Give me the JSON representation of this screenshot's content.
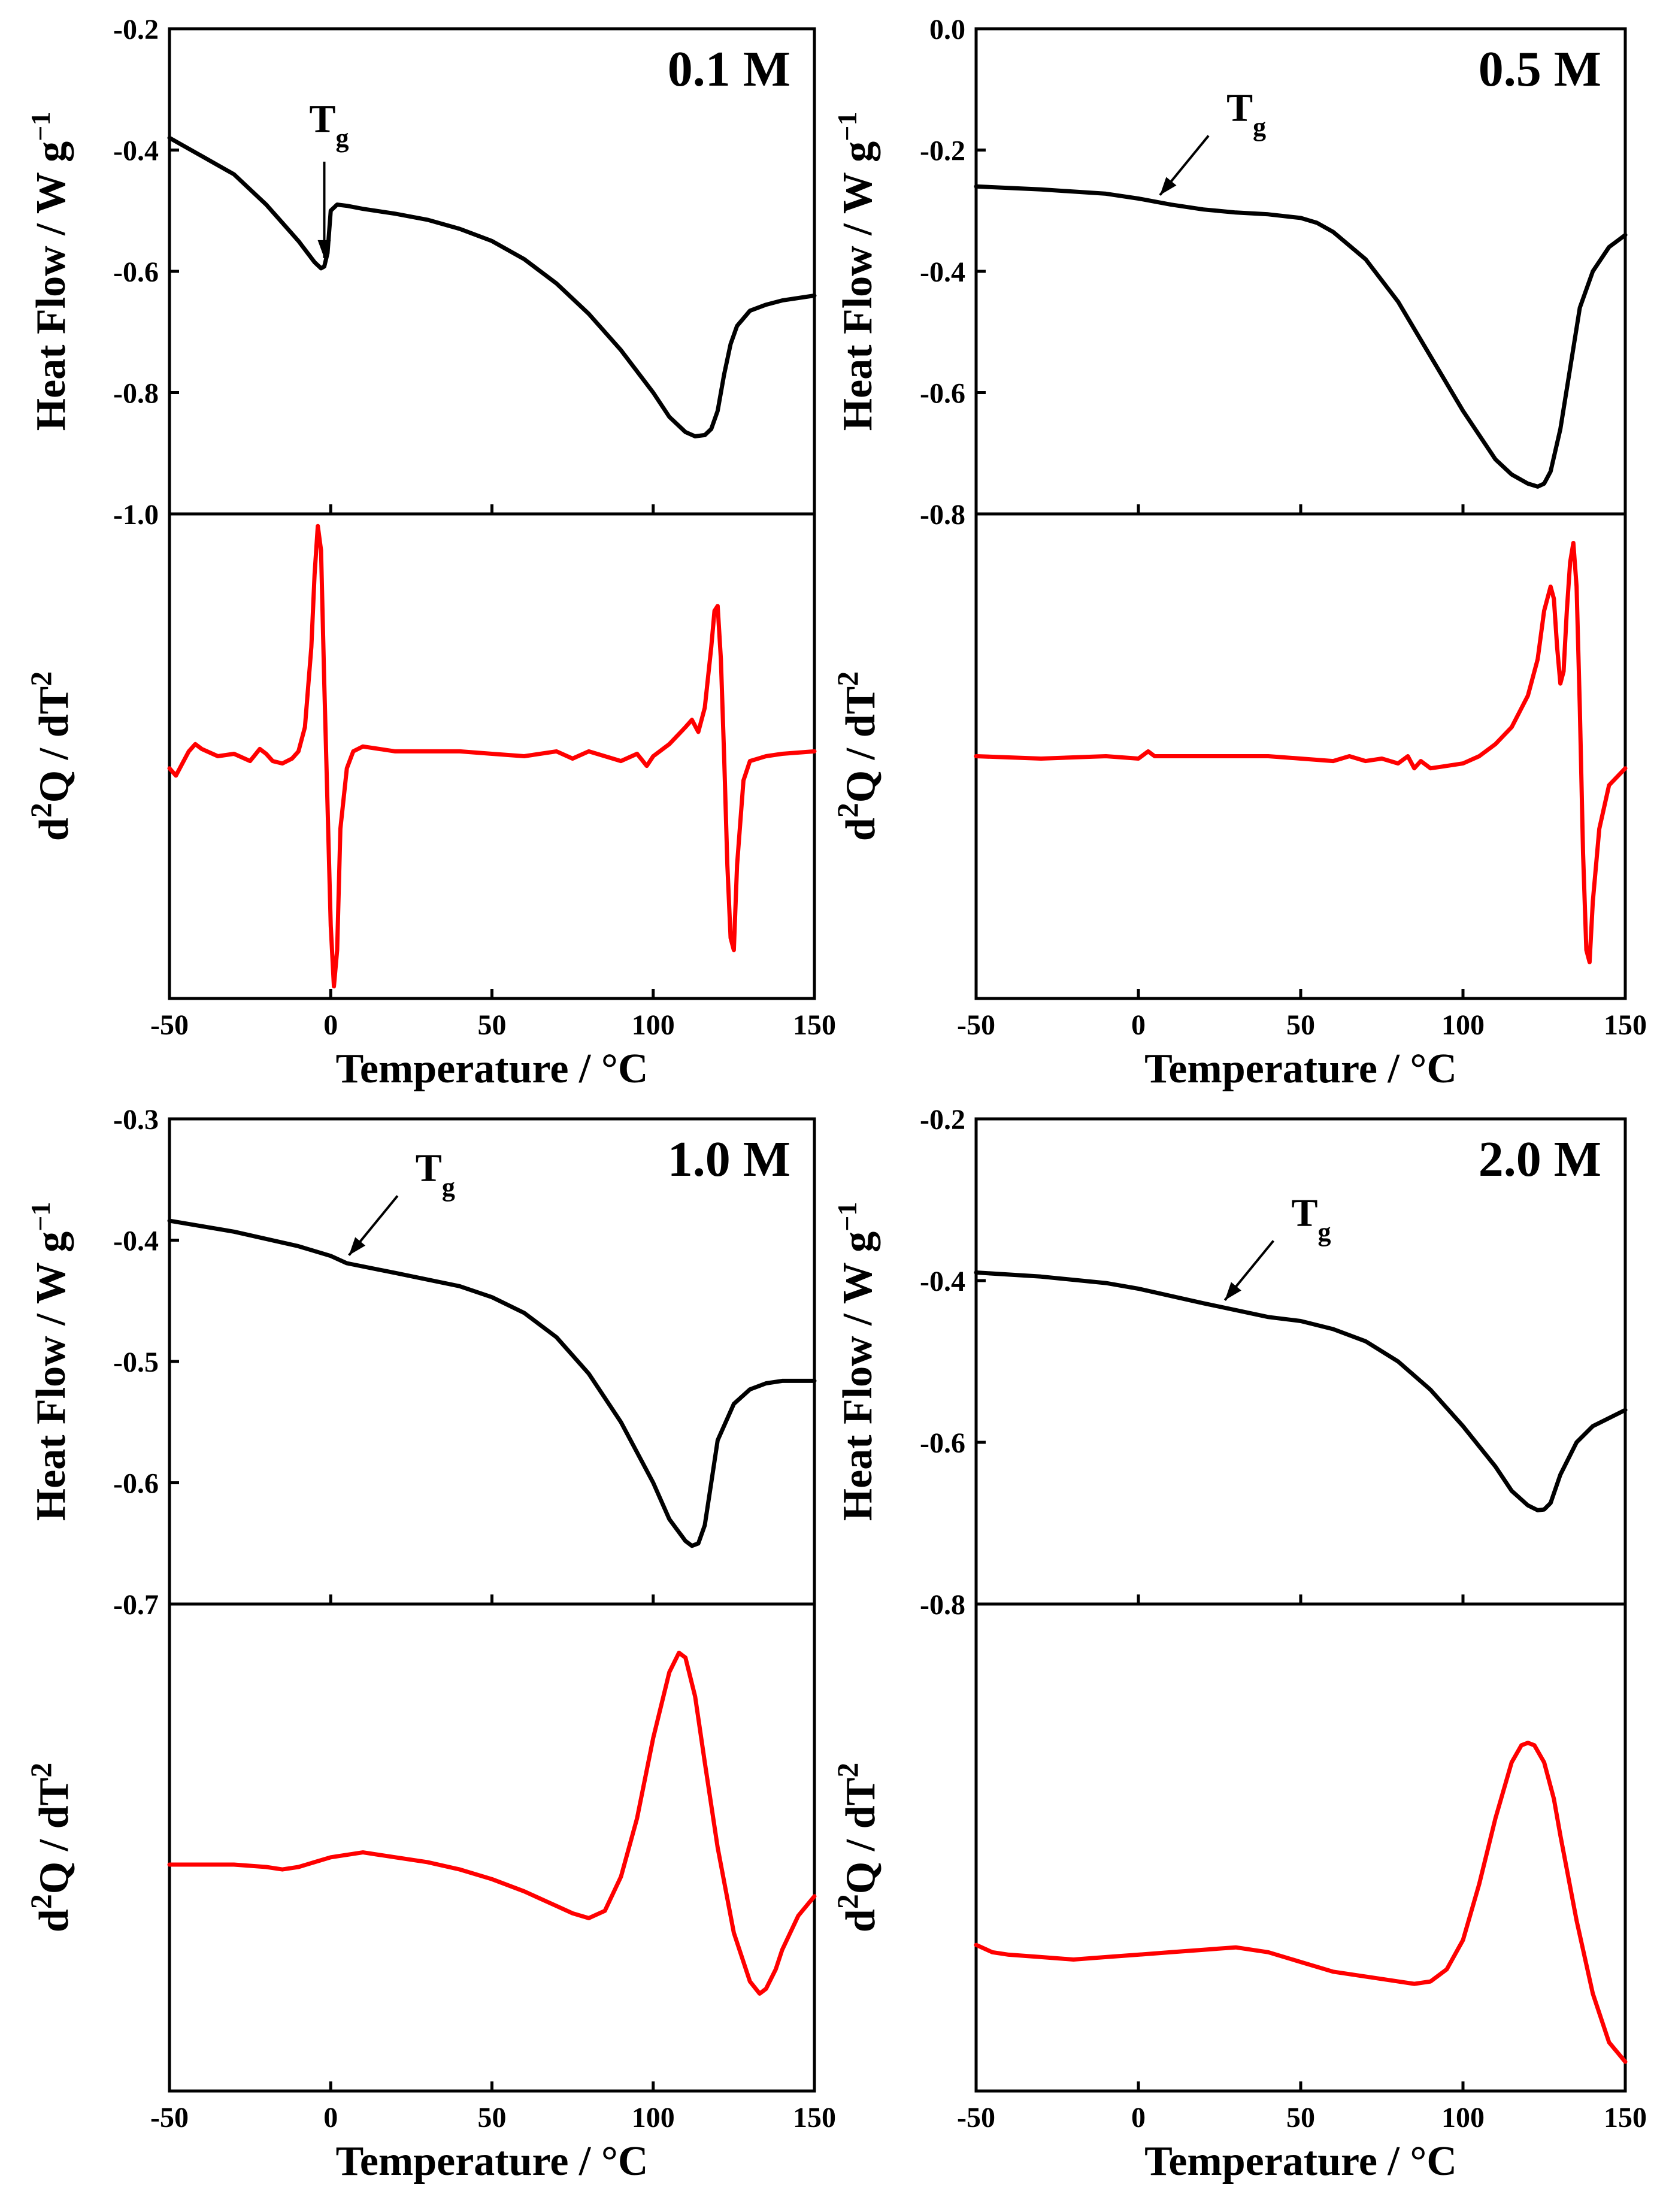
{
  "chart_data": [
    {
      "type": "line",
      "concentration_label": "0.1 M",
      "x_ticks": [
        "-50",
        "0",
        "50",
        "100",
        "150"
      ],
      "xlabel": "Temperature / °C",
      "xlim": [
        -50,
        150
      ],
      "heat_flow": {
        "ylabel_main": "Heat Flow / W g",
        "ylabel_sup": "−1",
        "ylim": [
          -1.0,
          -0.2
        ],
        "y_ticks": [
          "-0.2",
          "-0.4",
          "-0.6",
          "-0.8",
          "-1.0"
        ],
        "color": "#000000",
        "x": [
          -50,
          -40,
          -30,
          -20,
          -15,
          -10,
          -5,
          -3,
          -2,
          -1,
          0,
          2,
          5,
          10,
          20,
          30,
          40,
          50,
          60,
          70,
          80,
          90,
          100,
          105,
          110,
          113,
          116,
          118,
          120,
          122,
          124,
          126,
          130,
          135,
          140,
          150
        ],
        "values": [
          -0.38,
          -0.41,
          -0.44,
          -0.49,
          -0.52,
          -0.55,
          -0.585,
          -0.595,
          -0.592,
          -0.57,
          -0.5,
          -0.49,
          -0.492,
          -0.497,
          -0.505,
          -0.515,
          -0.53,
          -0.55,
          -0.58,
          -0.62,
          -0.67,
          -0.73,
          -0.8,
          -0.84,
          -0.865,
          -0.872,
          -0.87,
          -0.86,
          -0.83,
          -0.77,
          -0.72,
          -0.69,
          -0.665,
          -0.655,
          -0.648,
          -0.64
        ],
        "annotation": {
          "text": "T",
          "subscript": "g",
          "x": -2
        }
      },
      "d2q": {
        "ylabel_main": "d",
        "ylabel_sup": "2",
        "ylabel_rest": "Q / dT",
        "ylabel_sup2": "2",
        "ylim": [
          -1.0,
          1.0
        ],
        "color": "#ff0000",
        "x": [
          -50,
          -48,
          -46,
          -44,
          -42,
          -40,
          -35,
          -30,
          -25,
          -22,
          -20,
          -18,
          -15,
          -12,
          -10,
          -8,
          -6,
          -5,
          -4,
          -3,
          -2,
          -1,
          0,
          1,
          2,
          3,
          5,
          7,
          10,
          20,
          30,
          40,
          50,
          60,
          70,
          75,
          80,
          85,
          90,
          95,
          98,
          100,
          105,
          110,
          112,
          114,
          116,
          118,
          119,
          120,
          121,
          122,
          123,
          124,
          125,
          126,
          128,
          130,
          135,
          140,
          150
        ],
        "values": [
          -0.05,
          -0.08,
          -0.03,
          0.02,
          0.05,
          0.03,
          0.0,
          0.01,
          -0.02,
          0.03,
          0.01,
          -0.02,
          -0.03,
          -0.01,
          0.02,
          0.12,
          0.45,
          0.75,
          0.95,
          0.85,
          0.3,
          -0.2,
          -0.7,
          -0.95,
          -0.8,
          -0.3,
          -0.05,
          0.02,
          0.04,
          0.02,
          0.02,
          0.02,
          0.01,
          0.0,
          0.02,
          -0.01,
          0.02,
          0.0,
          -0.02,
          0.01,
          -0.04,
          0.0,
          0.05,
          0.12,
          0.15,
          0.1,
          0.2,
          0.45,
          0.6,
          0.62,
          0.4,
          0.0,
          -0.45,
          -0.75,
          -0.8,
          -0.45,
          -0.1,
          -0.02,
          0.0,
          0.01,
          0.02
        ]
      }
    },
    {
      "type": "line",
      "concentration_label": "0.5 M",
      "x_ticks": [
        "-50",
        "0",
        "50",
        "100",
        "150"
      ],
      "xlabel": "Temperature / °C",
      "xlim": [
        -50,
        150
      ],
      "heat_flow": {
        "ylabel_main": "Heat Flow / W g",
        "ylabel_sup": "−1",
        "ylim": [
          -0.8,
          0.0
        ],
        "y_ticks": [
          "0.0",
          "-0.2",
          "-0.4",
          "-0.6",
          "-0.8"
        ],
        "color": "#000000",
        "x": [
          -50,
          -30,
          -10,
          0,
          10,
          20,
          30,
          40,
          50,
          55,
          60,
          70,
          80,
          90,
          100,
          110,
          115,
          120,
          123,
          125,
          127,
          130,
          133,
          136,
          140,
          145,
          150
        ],
        "values": [
          -0.26,
          -0.265,
          -0.272,
          -0.28,
          -0.29,
          -0.298,
          -0.303,
          -0.306,
          -0.312,
          -0.32,
          -0.335,
          -0.38,
          -0.45,
          -0.54,
          -0.63,
          -0.71,
          -0.735,
          -0.75,
          -0.755,
          -0.75,
          -0.73,
          -0.66,
          -0.56,
          -0.46,
          -0.4,
          -0.36,
          -0.34
        ],
        "annotation": {
          "text": "T",
          "subscript": "g",
          "x": 5
        }
      },
      "d2q": {
        "ylabel_main": "d",
        "ylabel_sup": "2",
        "ylabel_rest": "Q / dT",
        "ylabel_sup2": "2",
        "ylim": [
          -1.0,
          1.0
        ],
        "color": "#ff0000",
        "x": [
          -50,
          -30,
          -10,
          0,
          3,
          5,
          10,
          20,
          30,
          40,
          50,
          60,
          65,
          70,
          75,
          80,
          83,
          85,
          87,
          90,
          95,
          100,
          105,
          110,
          115,
          120,
          123,
          125,
          127,
          128,
          129,
          130,
          131,
          132,
          133,
          134,
          135,
          136,
          137,
          138,
          139,
          140,
          142,
          145,
          150
        ],
        "values": [
          0.0,
          -0.01,
          0.0,
          -0.01,
          0.02,
          0.0,
          0.0,
          0.0,
          0.0,
          0.0,
          -0.01,
          -0.02,
          0.0,
          -0.02,
          -0.01,
          -0.03,
          0.0,
          -0.05,
          -0.02,
          -0.05,
          -0.04,
          -0.03,
          0.0,
          0.05,
          0.12,
          0.25,
          0.4,
          0.6,
          0.7,
          0.65,
          0.45,
          0.3,
          0.35,
          0.6,
          0.8,
          0.88,
          0.7,
          0.2,
          -0.4,
          -0.8,
          -0.85,
          -0.6,
          -0.3,
          -0.12,
          -0.05
        ]
      }
    },
    {
      "type": "line",
      "concentration_label": "1.0 M",
      "x_ticks": [
        "-50",
        "0",
        "50",
        "100",
        "150"
      ],
      "xlabel": "Temperature / °C",
      "xlim": [
        -50,
        150
      ],
      "heat_flow": {
        "ylabel_main": "Heat Flow / W g",
        "ylabel_sup": "−1",
        "ylim": [
          -0.7,
          -0.3
        ],
        "y_ticks": [
          "-0.3",
          "-0.4",
          "-0.5",
          "-0.6",
          "-0.7"
        ],
        "color": "#000000",
        "x": [
          -50,
          -30,
          -10,
          0,
          5,
          20,
          40,
          50,
          60,
          70,
          80,
          90,
          100,
          105,
          110,
          112,
          114,
          116,
          118,
          120,
          125,
          130,
          135,
          140,
          150
        ],
        "values": [
          -0.384,
          -0.393,
          -0.405,
          -0.413,
          -0.419,
          -0.427,
          -0.438,
          -0.447,
          -0.46,
          -0.48,
          -0.51,
          -0.55,
          -0.6,
          -0.63,
          -0.648,
          -0.652,
          -0.65,
          -0.635,
          -0.6,
          -0.565,
          -0.535,
          -0.523,
          -0.518,
          -0.516,
          -0.516
        ],
        "annotation": {
          "text": "T",
          "subscript": "g",
          "x": 4
        }
      },
      "d2q": {
        "ylabel_main": "d",
        "ylabel_sup": "2",
        "ylabel_rest": "Q / dT",
        "ylabel_sup2": "2",
        "ylim": [
          -1.0,
          1.0
        ],
        "color": "#ff0000",
        "x": [
          -50,
          -40,
          -30,
          -20,
          -15,
          -10,
          -5,
          0,
          5,
          10,
          20,
          30,
          40,
          50,
          60,
          70,
          75,
          80,
          85,
          90,
          95,
          100,
          105,
          108,
          110,
          113,
          116,
          120,
          125,
          130,
          133,
          135,
          138,
          140,
          145,
          150
        ],
        "values": [
          -0.07,
          -0.07,
          -0.07,
          -0.08,
          -0.09,
          -0.08,
          -0.06,
          -0.04,
          -0.03,
          -0.02,
          -0.04,
          -0.06,
          -0.09,
          -0.13,
          -0.18,
          -0.24,
          -0.27,
          -0.29,
          -0.26,
          -0.12,
          0.12,
          0.45,
          0.72,
          0.8,
          0.78,
          0.62,
          0.35,
          0.0,
          -0.35,
          -0.55,
          -0.6,
          -0.58,
          -0.5,
          -0.42,
          -0.28,
          -0.2
        ]
      }
    },
    {
      "type": "line",
      "concentration_label": "2.0 M",
      "x_ticks": [
        "-50",
        "0",
        "50",
        "100",
        "150"
      ],
      "xlabel": "Temperature / °C",
      "xlim": [
        -50,
        150
      ],
      "heat_flow": {
        "ylabel_main": "Heat Flow / W g",
        "ylabel_sup": "−1",
        "ylim": [
          -0.8,
          -0.2
        ],
        "y_ticks": [
          "-0.2",
          "-0.4",
          "-0.6",
          "-0.8"
        ],
        "color": "#000000",
        "x": [
          -50,
          -30,
          -10,
          0,
          20,
          40,
          50,
          60,
          70,
          80,
          90,
          100,
          110,
          115,
          120,
          123,
          125,
          127,
          130,
          135,
          140,
          150
        ],
        "values": [
          -0.39,
          -0.395,
          -0.403,
          -0.41,
          -0.428,
          -0.445,
          -0.45,
          -0.46,
          -0.475,
          -0.5,
          -0.535,
          -0.58,
          -0.63,
          -0.66,
          -0.678,
          -0.684,
          -0.683,
          -0.675,
          -0.64,
          -0.6,
          -0.58,
          -0.56
        ],
        "annotation": {
          "text": "T",
          "subscript": "g",
          "x": 25
        }
      },
      "d2q": {
        "ylabel_main": "d",
        "ylabel_sup": "2",
        "ylabel_rest": "Q / dT",
        "ylabel_sup2": "2",
        "ylim": [
          -1.0,
          1.0
        ],
        "color": "#ff0000",
        "x": [
          -50,
          -45,
          -40,
          -30,
          -20,
          -10,
          0,
          10,
          20,
          30,
          40,
          50,
          60,
          70,
          80,
          85,
          90,
          95,
          100,
          105,
          110,
          115,
          118,
          120,
          122,
          125,
          128,
          130,
          135,
          140,
          145,
          150
        ],
        "values": [
          -0.4,
          -0.43,
          -0.44,
          -0.45,
          -0.46,
          -0.45,
          -0.44,
          -0.43,
          -0.42,
          -0.41,
          -0.43,
          -0.47,
          -0.51,
          -0.53,
          -0.55,
          -0.56,
          -0.55,
          -0.5,
          -0.38,
          -0.15,
          0.12,
          0.35,
          0.42,
          0.43,
          0.42,
          0.35,
          0.2,
          0.05,
          -0.3,
          -0.6,
          -0.8,
          -0.88
        ]
      }
    }
  ]
}
